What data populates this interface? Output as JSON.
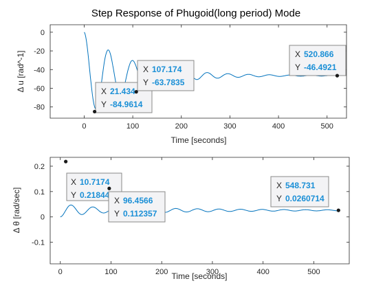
{
  "chart_data": [
    {
      "type": "line",
      "title": "Step Response of Phugoid(long period) Mode",
      "xlabel": "Time [seconds]",
      "ylabel": "Δ u [rad^-1]",
      "xlim": [
        -70,
        540
      ],
      "ylim": [
        -92,
        8
      ],
      "xticks": [
        0,
        100,
        200,
        300,
        400,
        500
      ],
      "yticks": [
        0,
        -20,
        -40,
        -60,
        -80
      ],
      "grid": false,
      "line_color": "#0072bd",
      "response": {
        "final": -46.5,
        "initial": 0,
        "amplitude": 49,
        "tau": 95,
        "period": 50,
        "tail_period": 42
      },
      "datatips": [
        {
          "x_label": "X",
          "y_label": "Y",
          "x": "21.434",
          "y": "-84.9614",
          "xv": 21.434,
          "yv": -84.9614
        },
        {
          "x_label": "X",
          "y_label": "Y",
          "x": "107.174",
          "y": "-63.7835",
          "xv": 107.174,
          "yv": -63.7835
        },
        {
          "x_label": "X",
          "y_label": "Y",
          "x": "520.866",
          "y": "-46.4921",
          "xv": 520.866,
          "yv": -46.4921
        }
      ]
    },
    {
      "type": "line",
      "title": "",
      "xlabel": "Time [seconds]",
      "ylabel": "Δ  θ [rad/sec]",
      "xlim": [
        -20,
        570
      ],
      "ylim": [
        -0.185,
        0.235
      ],
      "xticks": [
        0,
        100,
        200,
        300,
        400,
        500
      ],
      "yticks": [
        0.2,
        0.1,
        0,
        -0.1
      ],
      "grid": false,
      "line_color": "#0072bd",
      "response": {
        "final": 0.0261,
        "initial": 0,
        "amplitude": 0.19,
        "tau": 95,
        "period": 43,
        "tail_period": 43
      },
      "datatips": [
        {
          "x_label": "X",
          "y_label": "Y",
          "x": "10.7174",
          "y": "0.218448",
          "xv": 10.7174,
          "yv": 0.218448
        },
        {
          "x_label": "X",
          "y_label": "Y",
          "x": "96.4566",
          "y": "0.112357",
          "xv": 96.4566,
          "yv": 0.112357
        },
        {
          "x_label": "X",
          "y_label": "Y",
          "x": "548.731",
          "y": "0.0260714",
          "xv": 548.731,
          "yv": 0.0260714
        }
      ]
    }
  ]
}
